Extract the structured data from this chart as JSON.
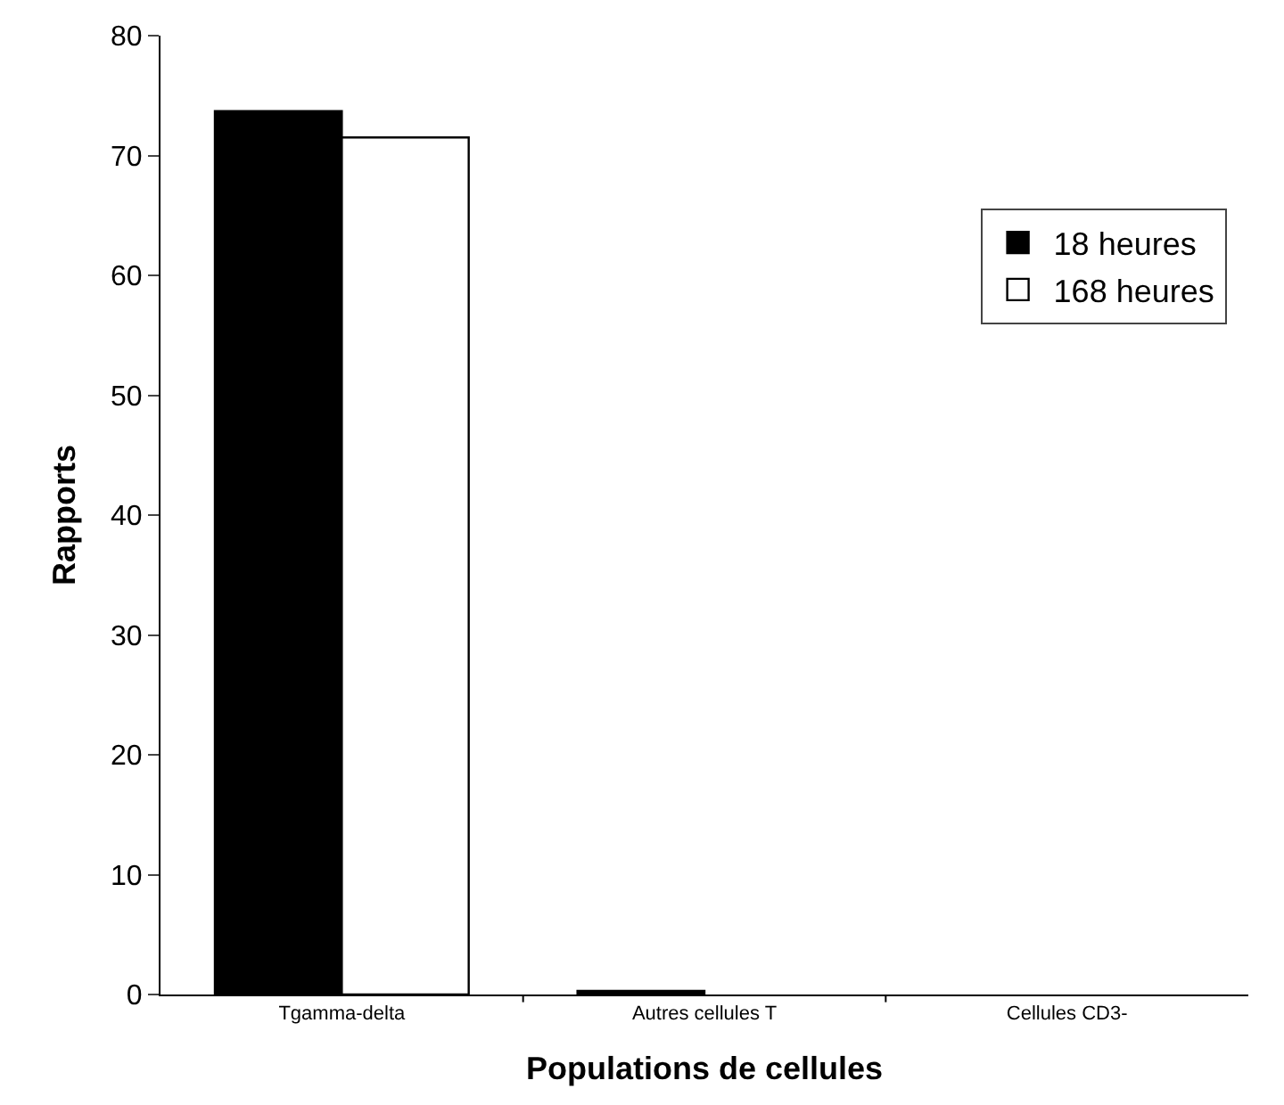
{
  "chart_data": {
    "type": "bar",
    "xlabel": "Populations de cellules",
    "ylabel": "Rapports",
    "categories": [
      "Tgamma-delta",
      "Autres cellules T",
      "Cellules CD3-"
    ],
    "series": [
      {
        "name": "18 heures",
        "color": "#000000",
        "values": [
          73.7,
          0.3,
          0
        ]
      },
      {
        "name": "168 heures",
        "color": "#ffffff",
        "values": [
          71.5,
          0,
          0
        ]
      }
    ],
    "ylim": [
      0,
      80
    ],
    "yticks": [
      0,
      10,
      20,
      30,
      40,
      50,
      60,
      70,
      80
    ],
    "legend": "top right"
  }
}
